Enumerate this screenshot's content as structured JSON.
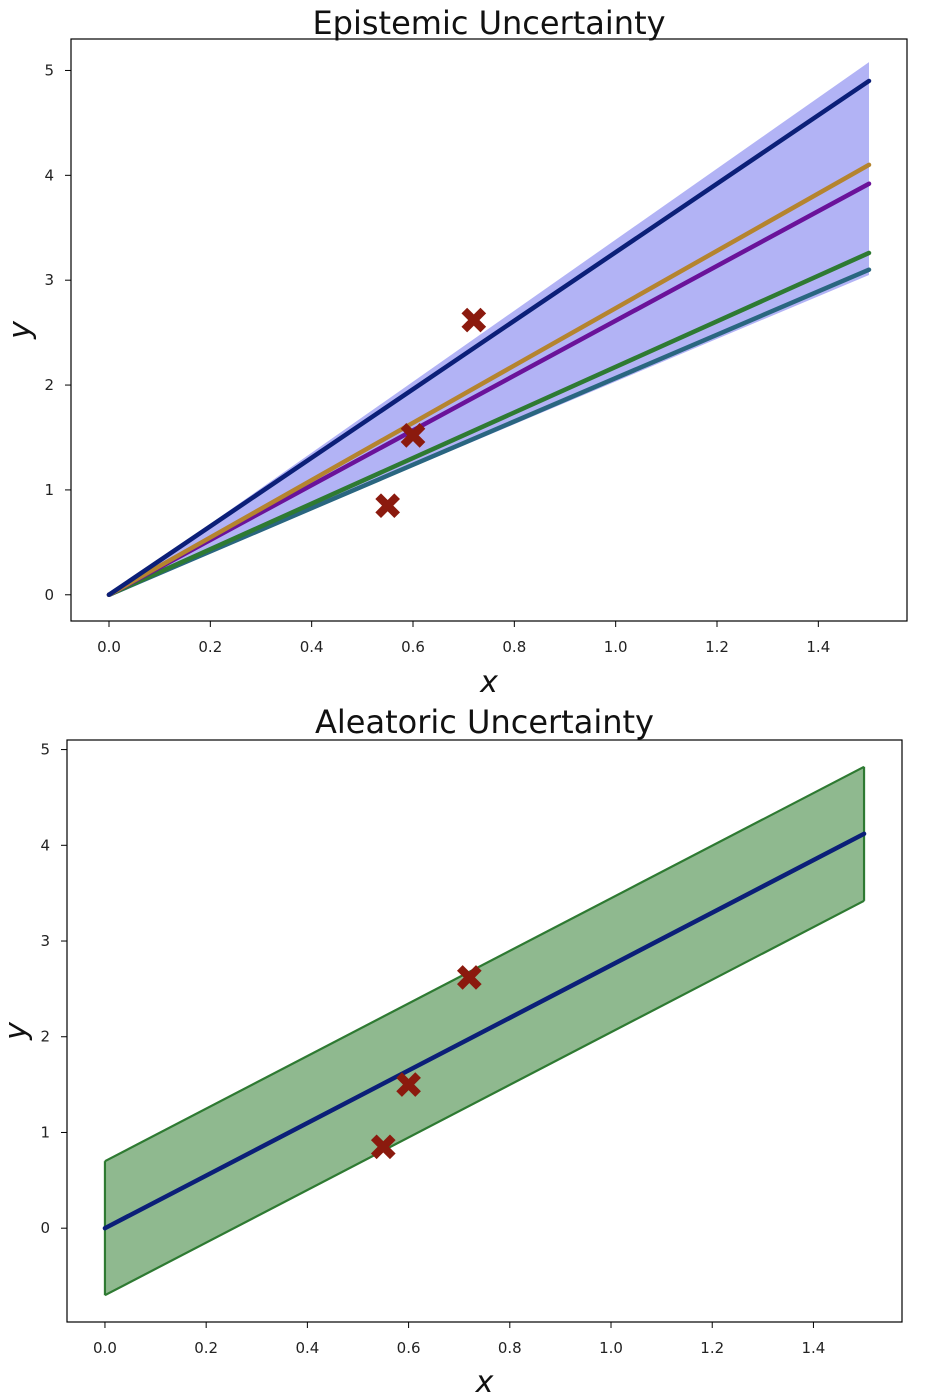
{
  "chart_data": [
    {
      "type": "line",
      "title": "Epistemic Uncertainty",
      "xlabel": "x",
      "ylabel": "y",
      "xlim": [
        -0.075,
        1.575
      ],
      "ylim": [
        -0.25,
        5.3
      ],
      "xticks": [
        0.0,
        0.2,
        0.4,
        0.6,
        0.8,
        1.0,
        1.2,
        1.4
      ],
      "yticks": [
        0,
        1,
        2,
        3,
        4,
        5
      ],
      "xtick_labels": [
        "0.0",
        "0.2",
        "0.4",
        "0.6",
        "0.8",
        "1.0",
        "1.2",
        "1.4"
      ],
      "ytick_labels": [
        "0",
        "1",
        "2",
        "3",
        "4",
        "5"
      ],
      "grid": false,
      "band": {
        "color": "#b2b3f5",
        "x": [
          0.0,
          1.5
        ],
        "lower": [
          0.0,
          3.05
        ],
        "upper": [
          0.0,
          5.08
        ]
      },
      "series": [
        {
          "color": "#0b1f78",
          "x": [
            0.0,
            1.5
          ],
          "values": [
            0.0,
            4.9
          ]
        },
        {
          "color": "#b5842e",
          "x": [
            0.0,
            1.5
          ],
          "values": [
            0.0,
            4.1
          ]
        },
        {
          "color": "#6a129a",
          "x": [
            0.0,
            1.5
          ],
          "values": [
            0.0,
            3.92
          ]
        },
        {
          "color": "#2e7a32",
          "x": [
            0.0,
            1.5
          ],
          "values": [
            0.0,
            3.26
          ]
        },
        {
          "color": "#2a6680",
          "x": [
            0.0,
            1.5
          ],
          "values": [
            0.0,
            3.1
          ]
        }
      ],
      "points": {
        "color": "#8b1a0e",
        "marker": "X",
        "x": [
          0.55,
          0.6,
          0.72
        ],
        "y": [
          0.85,
          1.52,
          2.62
        ]
      }
    },
    {
      "type": "line",
      "title": "Aleatoric Uncertainty",
      "xlabel": "x",
      "ylabel": "y",
      "xlim": [
        -0.075,
        1.575
      ],
      "ylim": [
        -0.98,
        5.1
      ],
      "xticks": [
        0.0,
        0.2,
        0.4,
        0.6,
        0.8,
        1.0,
        1.2,
        1.4
      ],
      "yticks": [
        0,
        1,
        2,
        3,
        4,
        5
      ],
      "xtick_labels": [
        "0.0",
        "0.2",
        "0.4",
        "0.6",
        "0.8",
        "1.0",
        "1.2",
        "1.4"
      ],
      "ytick_labels": [
        "0",
        "1",
        "2",
        "3",
        "4",
        "5"
      ],
      "grid": false,
      "band": {
        "color": "#8fb98f",
        "edge_color": "#2e7a32",
        "x": [
          0.0,
          1.5
        ],
        "lower": [
          -0.7,
          3.42
        ],
        "upper": [
          0.7,
          4.82
        ]
      },
      "series": [
        {
          "color": "#0b1f78",
          "x": [
            0.0,
            1.5
          ],
          "values": [
            0.0,
            4.12
          ]
        }
      ],
      "points": {
        "color": "#8b1a0e",
        "marker": "X",
        "x": [
          0.55,
          0.6,
          0.72
        ],
        "y": [
          0.85,
          1.5,
          2.62
        ]
      }
    }
  ]
}
